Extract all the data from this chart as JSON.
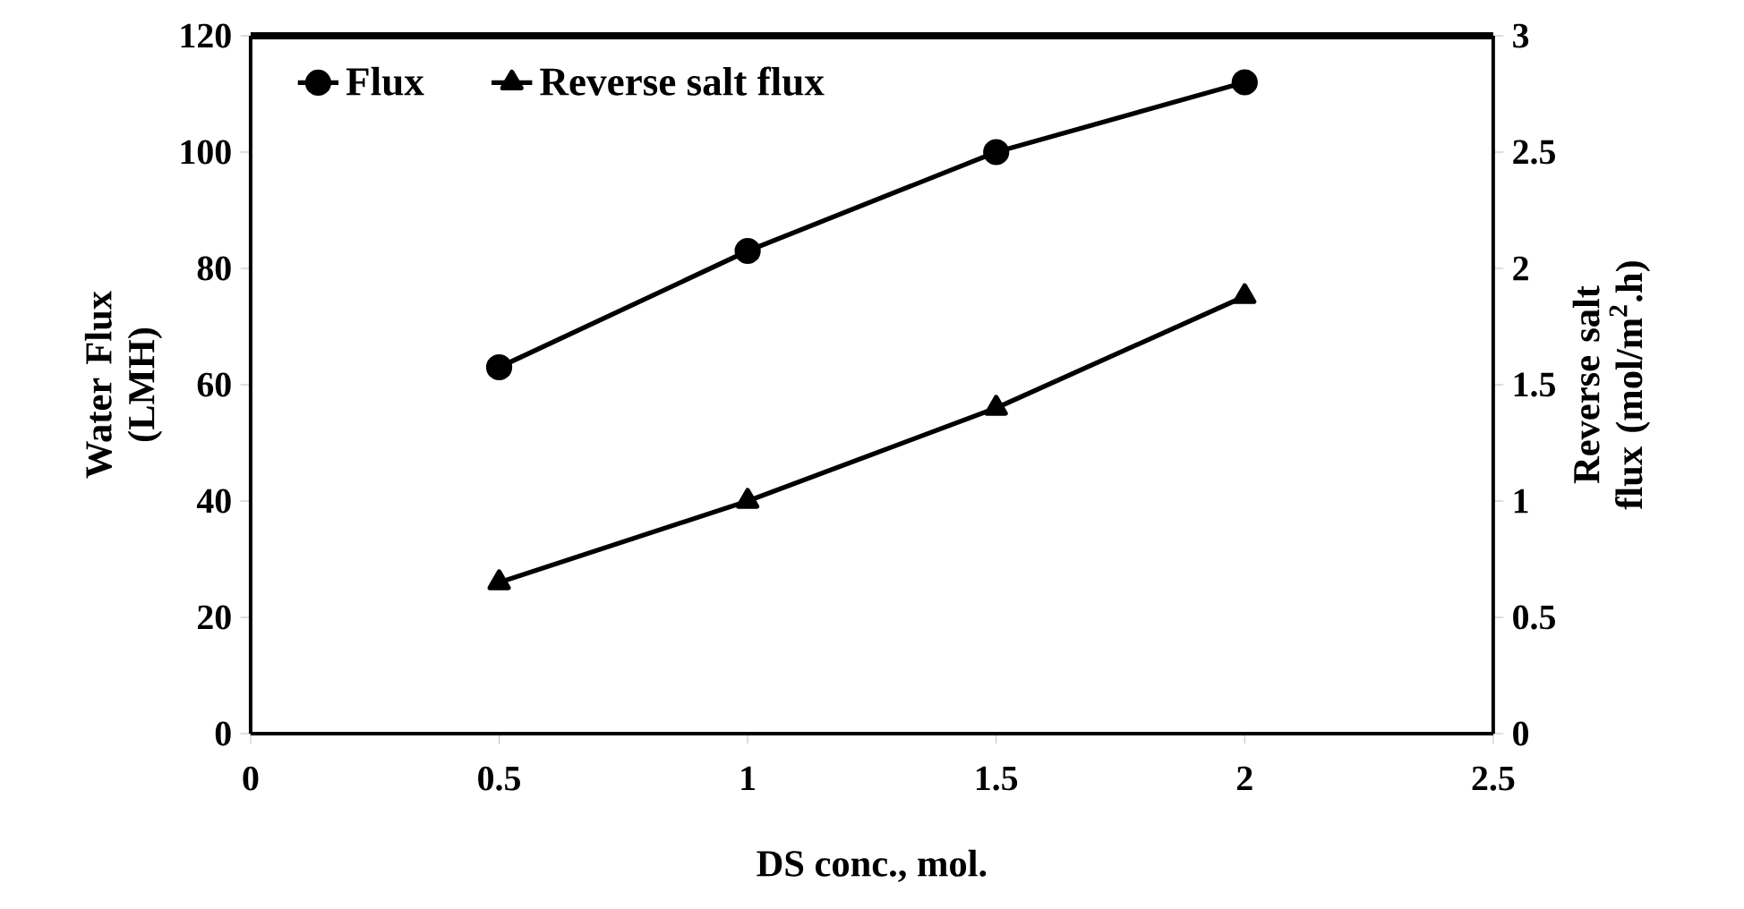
{
  "chart_data": {
    "type": "line",
    "xlabel": "DS conc., mol.",
    "ylabel": "Water Flux (LMH)",
    "y2label": "Reverse salt flux (mol/m$^{2}$.h)",
    "x": [
      0.5,
      1,
      1.5,
      2
    ],
    "series": [
      {
        "name": "Flux",
        "color": "#000000",
        "marker": "circle",
        "values": [
          63,
          83,
          100,
          112
        ]
      },
      {
        "name": "Reverse salt flux",
        "color": "#000000",
        "marker": "triangle",
        "axis": "y2",
        "values": [
          0.65,
          1.0,
          1.4,
          1.88
        ]
      }
    ],
    "xlim": [
      0,
      2.5
    ],
    "xticks": [
      0,
      0.5,
      1,
      1.5,
      2,
      2.5
    ],
    "ylim": [
      0,
      120
    ],
    "yticks": [
      0,
      20,
      40,
      60,
      80,
      100,
      120
    ],
    "y2lim": [
      0,
      3
    ],
    "y2ticks": [
      0,
      0.5,
      1,
      1.5,
      2,
      2.5,
      3
    ],
    "legend": "top left",
    "grid": false,
    "line_style": "solid"
  }
}
